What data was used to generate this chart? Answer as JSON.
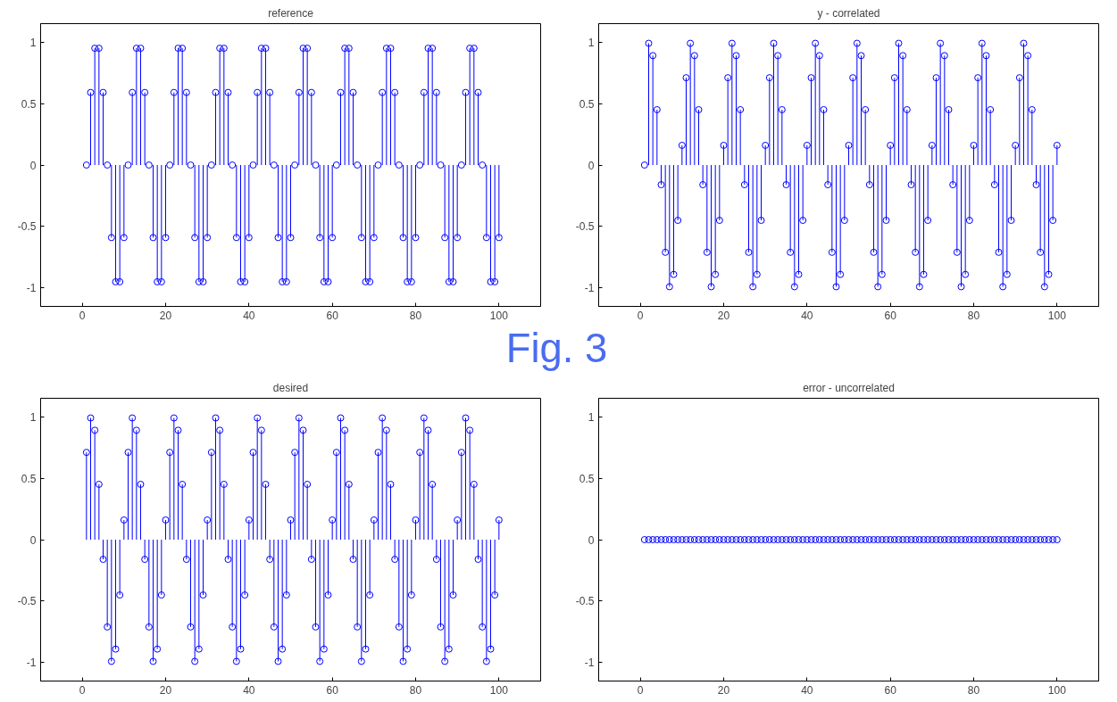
{
  "chart_data": [
    {
      "type": "lollipop",
      "title": "reference",
      "annotations": [
        "Fig. 3"
      ],
      "marker": "circle",
      "grid": false,
      "xlim": [
        -10,
        110
      ],
      "ylim": [
        -1.15,
        1.15
      ],
      "xticks": [
        0,
        20,
        40,
        60,
        80,
        100
      ],
      "yticks": [
        -1,
        -0.5,
        0,
        0.5,
        1
      ],
      "x": [
        1,
        2,
        3,
        4,
        5,
        6,
        7,
        8,
        9,
        10,
        11,
        12,
        13,
        14,
        15,
        16,
        17,
        18,
        19,
        20,
        21,
        22,
        23,
        24,
        25,
        26,
        27,
        28,
        29,
        30,
        31,
        32,
        33,
        34,
        35,
        36,
        37,
        38,
        39,
        40,
        41,
        42,
        43,
        44,
        45,
        46,
        47,
        48,
        49,
        50,
        51,
        52,
        53,
        54,
        55,
        56,
        57,
        58,
        59,
        60,
        61,
        62,
        63,
        64,
        65,
        66,
        67,
        68,
        69,
        70,
        71,
        72,
        73,
        74,
        75,
        76,
        77,
        78,
        79,
        80,
        81,
        82,
        83,
        84,
        85,
        86,
        87,
        88,
        89,
        90,
        91,
        92,
        93,
        94,
        95,
        96,
        97,
        98,
        99,
        100
      ],
      "series": [
        {
          "color": "#0000ff",
          "values": [
            0,
            0.59,
            0.95,
            0.95,
            0.59,
            0,
            -0.59,
            -0.95,
            -0.95,
            -0.59,
            0,
            0.59,
            0.95,
            0.95,
            0.59,
            0,
            -0.59,
            -0.95,
            -0.95,
            -0.59,
            0,
            0.59,
            0.95,
            0.95,
            0.59,
            0,
            -0.59,
            -0.95,
            -0.95,
            -0.59,
            0,
            0.59,
            0.95,
            0.95,
            0.59,
            0,
            -0.59,
            -0.95,
            -0.95,
            -0.59,
            0,
            0.59,
            0.95,
            0.95,
            0.59,
            0,
            -0.59,
            -0.95,
            -0.95,
            -0.59,
            0,
            0.59,
            0.95,
            0.95,
            0.59,
            0,
            -0.59,
            -0.95,
            -0.95,
            -0.59,
            0,
            0.59,
            0.95,
            0.95,
            0.59,
            0,
            -0.59,
            -0.95,
            -0.95,
            -0.59,
            0,
            0.59,
            0.95,
            0.95,
            0.59,
            0,
            -0.59,
            -0.95,
            -0.95,
            -0.59,
            0,
            0.59,
            0.95,
            0.95,
            0.59,
            0,
            -0.59,
            -0.95,
            -0.95,
            -0.59,
            0,
            0.59,
            0.95,
            0.95,
            0.59,
            0,
            -0.59,
            -0.95,
            -0.95,
            -0.59
          ]
        }
      ]
    },
    {
      "type": "lollipop",
      "title": "y - correlated",
      "marker": "circle",
      "grid": false,
      "xlim": [
        -10,
        110
      ],
      "ylim": [
        -1.15,
        1.15
      ],
      "xticks": [
        0,
        20,
        40,
        60,
        80,
        100
      ],
      "yticks": [
        -1,
        -0.5,
        0,
        0.5,
        1
      ],
      "x": [
        1,
        2,
        3,
        4,
        5,
        6,
        7,
        8,
        9,
        10,
        11,
        12,
        13,
        14,
        15,
        16,
        17,
        18,
        19,
        20,
        21,
        22,
        23,
        24,
        25,
        26,
        27,
        28,
        29,
        30,
        31,
        32,
        33,
        34,
        35,
        36,
        37,
        38,
        39,
        40,
        41,
        42,
        43,
        44,
        45,
        46,
        47,
        48,
        49,
        50,
        51,
        52,
        53,
        54,
        55,
        56,
        57,
        58,
        59,
        60,
        61,
        62,
        63,
        64,
        65,
        66,
        67,
        68,
        69,
        70,
        71,
        72,
        73,
        74,
        75,
        76,
        77,
        78,
        79,
        80,
        81,
        82,
        83,
        84,
        85,
        86,
        87,
        88,
        89,
        90,
        91,
        92,
        93,
        94,
        95,
        96,
        97,
        98,
        99,
        100
      ],
      "series": [
        {
          "color": "#0000ff",
          "values": [
            0,
            0.99,
            0.89,
            0.45,
            -0.16,
            -0.71,
            -0.99,
            -0.89,
            -0.45,
            0.16,
            0.71,
            0.99,
            0.89,
            0.45,
            -0.16,
            -0.71,
            -0.99,
            -0.89,
            -0.45,
            0.16,
            0.71,
            0.99,
            0.89,
            0.45,
            -0.16,
            -0.71,
            -0.99,
            -0.89,
            -0.45,
            0.16,
            0.71,
            0.99,
            0.89,
            0.45,
            -0.16,
            -0.71,
            -0.99,
            -0.89,
            -0.45,
            0.16,
            0.71,
            0.99,
            0.89,
            0.45,
            -0.16,
            -0.71,
            -0.99,
            -0.89,
            -0.45,
            0.16,
            0.71,
            0.99,
            0.89,
            0.45,
            -0.16,
            -0.71,
            -0.99,
            -0.89,
            -0.45,
            0.16,
            0.71,
            0.99,
            0.89,
            0.45,
            -0.16,
            -0.71,
            -0.99,
            -0.89,
            -0.45,
            0.16,
            0.71,
            0.99,
            0.89,
            0.45,
            -0.16,
            -0.71,
            -0.99,
            -0.89,
            -0.45,
            0.16,
            0.71,
            0.99,
            0.89,
            0.45,
            -0.16,
            -0.71,
            -0.99,
            -0.89,
            -0.45,
            0.16,
            0.71,
            0.99,
            0.89,
            0.45,
            -0.16,
            -0.71,
            -0.99,
            -0.89,
            -0.45,
            0.16
          ]
        }
      ]
    },
    {
      "type": "lollipop",
      "title": "desired",
      "marker": "circle",
      "grid": false,
      "xlim": [
        -10,
        110
      ],
      "ylim": [
        -1.15,
        1.15
      ],
      "xticks": [
        0,
        20,
        40,
        60,
        80,
        100
      ],
      "yticks": [
        -1,
        -0.5,
        0,
        0.5,
        1
      ],
      "x": [
        1,
        2,
        3,
        4,
        5,
        6,
        7,
        8,
        9,
        10,
        11,
        12,
        13,
        14,
        15,
        16,
        17,
        18,
        19,
        20,
        21,
        22,
        23,
        24,
        25,
        26,
        27,
        28,
        29,
        30,
        31,
        32,
        33,
        34,
        35,
        36,
        37,
        38,
        39,
        40,
        41,
        42,
        43,
        44,
        45,
        46,
        47,
        48,
        49,
        50,
        51,
        52,
        53,
        54,
        55,
        56,
        57,
        58,
        59,
        60,
        61,
        62,
        63,
        64,
        65,
        66,
        67,
        68,
        69,
        70,
        71,
        72,
        73,
        74,
        75,
        76,
        77,
        78,
        79,
        80,
        81,
        82,
        83,
        84,
        85,
        86,
        87,
        88,
        89,
        90,
        91,
        92,
        93,
        94,
        95,
        96,
        97,
        98,
        99,
        100
      ],
      "series": [
        {
          "color": "#0000ff",
          "values": [
            0.71,
            0.99,
            0.89,
            0.45,
            -0.16,
            -0.71,
            -0.99,
            -0.89,
            -0.45,
            0.16,
            0.71,
            0.99,
            0.89,
            0.45,
            -0.16,
            -0.71,
            -0.99,
            -0.89,
            -0.45,
            0.16,
            0.71,
            0.99,
            0.89,
            0.45,
            -0.16,
            -0.71,
            -0.99,
            -0.89,
            -0.45,
            0.16,
            0.71,
            0.99,
            0.89,
            0.45,
            -0.16,
            -0.71,
            -0.99,
            -0.89,
            -0.45,
            0.16,
            0.71,
            0.99,
            0.89,
            0.45,
            -0.16,
            -0.71,
            -0.99,
            -0.89,
            -0.45,
            0.16,
            0.71,
            0.99,
            0.89,
            0.45,
            -0.16,
            -0.71,
            -0.99,
            -0.89,
            -0.45,
            0.16,
            0.71,
            0.99,
            0.89,
            0.45,
            -0.16,
            -0.71,
            -0.99,
            -0.89,
            -0.45,
            0.16,
            0.71,
            0.99,
            0.89,
            0.45,
            -0.16,
            -0.71,
            -0.99,
            -0.89,
            -0.45,
            0.16,
            0.71,
            0.99,
            0.89,
            0.45,
            -0.16,
            -0.71,
            -0.99,
            -0.89,
            -0.45,
            0.16,
            0.71,
            0.99,
            0.89,
            0.45,
            -0.16,
            -0.71,
            -0.99,
            -0.89,
            -0.45,
            0.16
          ]
        }
      ]
    },
    {
      "type": "lollipop",
      "title": "error - uncorrelated",
      "marker": "circle",
      "grid": false,
      "xlim": [
        -10,
        110
      ],
      "ylim": [
        -1.15,
        1.15
      ],
      "xticks": [
        0,
        20,
        40,
        60,
        80,
        100
      ],
      "yticks": [
        -1,
        -0.5,
        0,
        0.5,
        1
      ],
      "x": [
        1,
        2,
        3,
        4,
        5,
        6,
        7,
        8,
        9,
        10,
        11,
        12,
        13,
        14,
        15,
        16,
        17,
        18,
        19,
        20,
        21,
        22,
        23,
        24,
        25,
        26,
        27,
        28,
        29,
        30,
        31,
        32,
        33,
        34,
        35,
        36,
        37,
        38,
        39,
        40,
        41,
        42,
        43,
        44,
        45,
        46,
        47,
        48,
        49,
        50,
        51,
        52,
        53,
        54,
        55,
        56,
        57,
        58,
        59,
        60,
        61,
        62,
        63,
        64,
        65,
        66,
        67,
        68,
        69,
        70,
        71,
        72,
        73,
        74,
        75,
        76,
        77,
        78,
        79,
        80,
        81,
        82,
        83,
        84,
        85,
        86,
        87,
        88,
        89,
        90,
        91,
        92,
        93,
        94,
        95,
        96,
        97,
        98,
        99,
        100
      ],
      "series": [
        {
          "color": "#0000ff",
          "values": [
            0,
            0,
            0,
            0,
            0,
            0,
            0,
            0,
            0,
            0,
            0,
            0,
            0,
            0,
            0,
            0,
            0,
            0,
            0,
            0,
            0,
            0,
            0,
            0,
            0,
            0,
            0,
            0,
            0,
            0,
            0,
            0,
            0,
            0,
            0,
            0,
            0,
            0,
            0,
            0,
            0,
            0,
            0,
            0,
            0,
            0,
            0,
            0,
            0,
            0,
            0,
            0,
            0,
            0,
            0,
            0,
            0,
            0,
            0,
            0,
            0,
            0,
            0,
            0,
            0,
            0,
            0,
            0,
            0,
            0,
            0,
            0,
            0,
            0,
            0,
            0,
            0,
            0,
            0,
            0,
            0,
            0,
            0,
            0,
            0,
            0,
            0,
            0,
            0,
            0,
            0,
            0,
            0,
            0,
            0,
            0,
            0,
            0,
            0,
            0
          ]
        }
      ]
    }
  ]
}
